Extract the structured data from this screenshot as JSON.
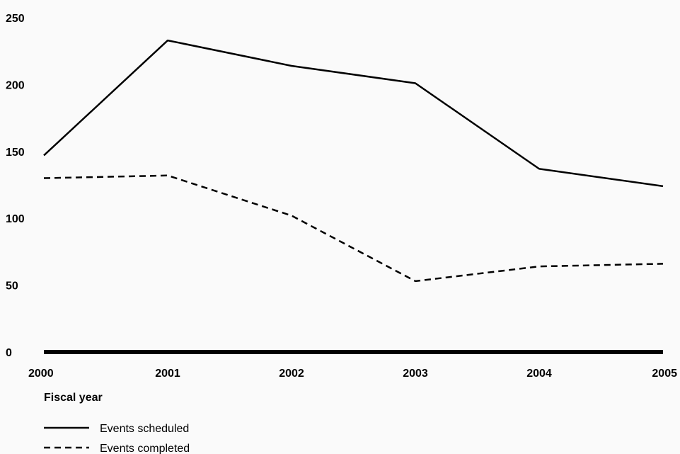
{
  "chart_data": {
    "type": "line",
    "title": "",
    "xlabel": "Fiscal year",
    "ylabel": "",
    "x": [
      "2000",
      "2001",
      "2002",
      "2003",
      "2004",
      "2005"
    ],
    "ylim": [
      0,
      250
    ],
    "yticks": [
      "0",
      "50",
      "100",
      "150",
      "200",
      "250"
    ],
    "grid": false,
    "legend_position": "bottom-left",
    "series": [
      {
        "name": "Events scheduled",
        "style": "solid",
        "color": "#000000",
        "values": [
          147,
          233,
          214,
          201,
          137,
          124
        ]
      },
      {
        "name": "Events completed",
        "style": "dashed",
        "color": "#000000",
        "values": [
          130,
          132,
          102,
          53,
          64,
          66
        ]
      }
    ]
  }
}
